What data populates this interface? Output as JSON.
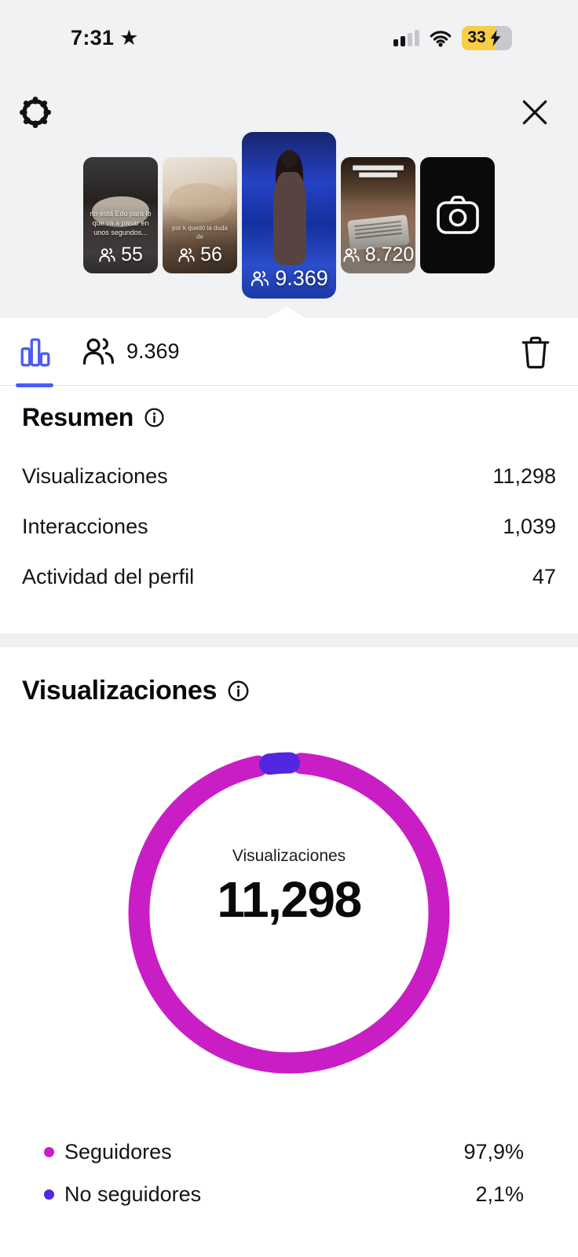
{
  "status_bar": {
    "time": "7:31",
    "star": "★",
    "battery_percent": "33"
  },
  "carousel": {
    "stories": [
      {
        "count": "55",
        "caption": "no está Edu para lo que va a pasar en unos segundos..."
      },
      {
        "count": "56",
        "caption": "por k quedó la duda de"
      },
      {
        "count": "9.369",
        "caption": ""
      },
      {
        "count": "8.720",
        "caption": ""
      }
    ]
  },
  "toolbar": {
    "viewers_count": "9.369"
  },
  "summary": {
    "title": "Resumen",
    "rows": [
      {
        "label": "Visualizaciones",
        "value": "11,298"
      },
      {
        "label": "Interacciones",
        "value": "1,039"
      },
      {
        "label": "Actividad del perfil",
        "value": "47"
      }
    ]
  },
  "views_section": {
    "title": "Visualizaciones"
  },
  "chart_data": {
    "type": "pie",
    "subtype": "donut",
    "title": "Visualizaciones",
    "center_label": "Visualizaciones",
    "center_value": "11,298",
    "series": [
      {
        "name": "Seguidores",
        "value": 97.9,
        "display": "97,9%",
        "color": "#c91ec6"
      },
      {
        "name": "No seguidores",
        "value": 2.1,
        "display": "2,1%",
        "color": "#5227df"
      }
    ],
    "legend_position": "bottom",
    "accent_blue": "#4a5cf5"
  }
}
